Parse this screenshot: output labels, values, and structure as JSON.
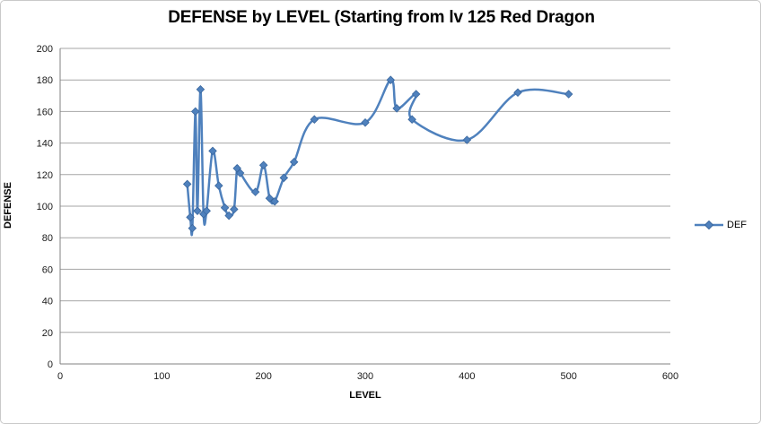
{
  "chart_data": {
    "type": "line",
    "subtype": "scatter-smooth-lines-markers",
    "title": "DEFENSE by LEVEL (Starting from lv 125 Red Dragon",
    "xlabel": "LEVEL",
    "ylabel": "DEFENSE",
    "xlim": [
      0,
      600
    ],
    "ylim": [
      0,
      200
    ],
    "x_ticks": [
      0,
      100,
      200,
      300,
      400,
      500,
      600
    ],
    "y_ticks": [
      0,
      20,
      40,
      60,
      80,
      100,
      120,
      140,
      160,
      180,
      200
    ],
    "grid": "horizontal",
    "legend_position": "right",
    "marker": "diamond",
    "smooth": true,
    "series": [
      {
        "name": "DEF",
        "points": [
          [
            125,
            114
          ],
          [
            128,
            93
          ],
          [
            130,
            86
          ],
          [
            133,
            160
          ],
          [
            135,
            97
          ],
          [
            138,
            174
          ],
          [
            141,
            95
          ],
          [
            144,
            97
          ],
          [
            150,
            135
          ],
          [
            156,
            113
          ],
          [
            162,
            99
          ],
          [
            166,
            94
          ],
          [
            171,
            98
          ],
          [
            174,
            124
          ],
          [
            177,
            121
          ],
          [
            192,
            109
          ],
          [
            200,
            126
          ],
          [
            206,
            105
          ],
          [
            211,
            103
          ],
          [
            220,
            118
          ],
          [
            230,
            128
          ],
          [
            250,
            155
          ],
          [
            300,
            153
          ],
          [
            325,
            180
          ],
          [
            331,
            162
          ],
          [
            350,
            171
          ],
          [
            346,
            155
          ],
          [
            400,
            142
          ],
          [
            450,
            172
          ],
          [
            500,
            171
          ]
        ]
      }
    ],
    "colors": {
      "series_line": "#4F81BD",
      "marker_fill": "#4F81BD",
      "marker_edge": "#3A679E",
      "gridline": "#A6A6A6",
      "axis_line": "#808080",
      "tick_text": "#1a1a1a",
      "background": "#ffffff"
    }
  }
}
